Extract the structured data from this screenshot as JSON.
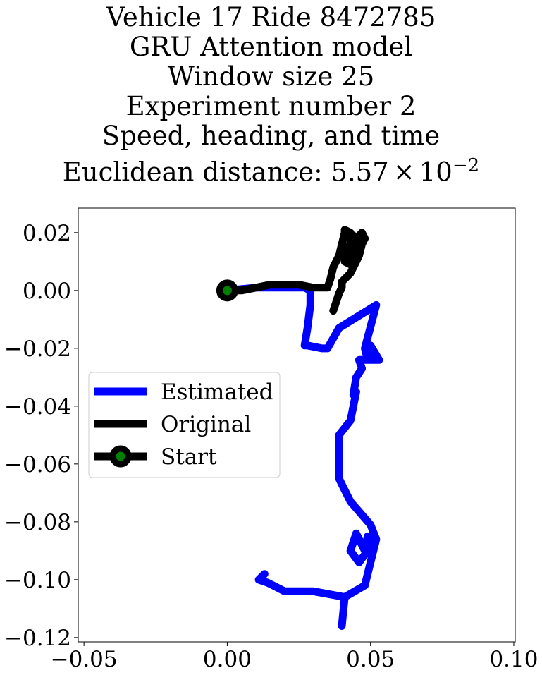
{
  "chart_data": {
    "type": "line",
    "title_lines": [
      "Vehicle 17 Ride 8472785",
      "GRU Attention model",
      "Window size 25",
      "Experiment number 2",
      "Speed, heading, and time"
    ],
    "title_metric": {
      "prefix": "Euclidean distance: 5.57",
      "times": "×",
      "base": "10",
      "exponent": "−2"
    },
    "xlim": [
      -0.052,
      0.1005
    ],
    "ylim": [
      -0.1215,
      0.0285
    ],
    "xticks": [
      -0.05,
      0.0,
      0.05,
      0.1
    ],
    "xtick_labels": [
      "−0.05",
      "0.00",
      "0.05",
      "0.10"
    ],
    "yticks": [
      0.02,
      0.0,
      -0.02,
      -0.04,
      -0.06,
      -0.08,
      -0.1,
      -0.12
    ],
    "ytick_labels": [
      "0.02",
      "0.00",
      "−0.02",
      "−0.04",
      "−0.06",
      "−0.08",
      "−0.10",
      "−0.12"
    ],
    "legend": {
      "placement": "center-left",
      "entries": [
        "Estimated",
        "Original",
        "Start"
      ]
    },
    "grid": false,
    "series": [
      {
        "name": "Estimated",
        "color": "#0000ff",
        "x": [
          0.0,
          0.01,
          0.02,
          0.027,
          0.029,
          0.029,
          0.028,
          0.027,
          0.028,
          0.033,
          0.035,
          0.039,
          0.052,
          0.048,
          0.049,
          0.05,
          0.053,
          0.049,
          0.048,
          0.046,
          0.047,
          0.045,
          0.044,
          0.045,
          0.043,
          0.039,
          0.039,
          0.04,
          0.043,
          0.05,
          0.052,
          0.046,
          0.043,
          0.045,
          0.048,
          0.049,
          0.052,
          0.048,
          0.041,
          0.04,
          0.041,
          0.03,
          0.023,
          0.02,
          0.016,
          0.014,
          0.011,
          0.013
        ],
        "y": [
          0.0,
          0.001,
          0.001,
          0.001,
          0.0,
          -0.005,
          -0.013,
          -0.019,
          -0.019,
          -0.02,
          -0.02,
          -0.013,
          -0.005,
          -0.02,
          -0.024,
          -0.019,
          -0.024,
          -0.024,
          -0.024,
          -0.024,
          -0.027,
          -0.03,
          -0.036,
          -0.035,
          -0.045,
          -0.05,
          -0.065,
          -0.067,
          -0.073,
          -0.081,
          -0.086,
          -0.094,
          -0.09,
          -0.084,
          -0.09,
          -0.085,
          -0.086,
          -0.102,
          -0.106,
          -0.116,
          -0.106,
          -0.104,
          -0.104,
          -0.104,
          -0.102,
          -0.101,
          -0.1,
          -0.098
        ]
      },
      {
        "name": "Original",
        "color": "#000000",
        "x": [
          0.0,
          0.005,
          0.01,
          0.015,
          0.02,
          0.025,
          0.03,
          0.033,
          0.035,
          0.036,
          0.037,
          0.039,
          0.04,
          0.041,
          0.041,
          0.043,
          0.043,
          0.044,
          0.042,
          0.041,
          0.043,
          0.044,
          0.045,
          0.046,
          0.047,
          0.048,
          0.047,
          0.046,
          0.045,
          0.044,
          0.043,
          0.042,
          0.041,
          0.04,
          0.04,
          0.039,
          0.038,
          0.037
        ],
        "y": [
          0.0,
          0.0,
          0.001,
          0.002,
          0.002,
          0.002,
          0.001,
          0.001,
          0.001,
          0.004,
          0.008,
          0.012,
          0.016,
          0.02,
          0.021,
          0.02,
          0.016,
          0.019,
          0.014,
          0.01,
          0.009,
          0.012,
          0.016,
          0.019,
          0.02,
          0.018,
          0.016,
          0.012,
          0.01,
          0.008,
          0.006,
          0.005,
          0.004,
          0.003,
          0.001,
          -0.001,
          -0.004,
          -0.007
        ]
      }
    ],
    "start_point": {
      "name": "Start",
      "x": 0.0,
      "y": 0.0,
      "marker_color": "#008000",
      "edge_color": "#000000"
    }
  }
}
